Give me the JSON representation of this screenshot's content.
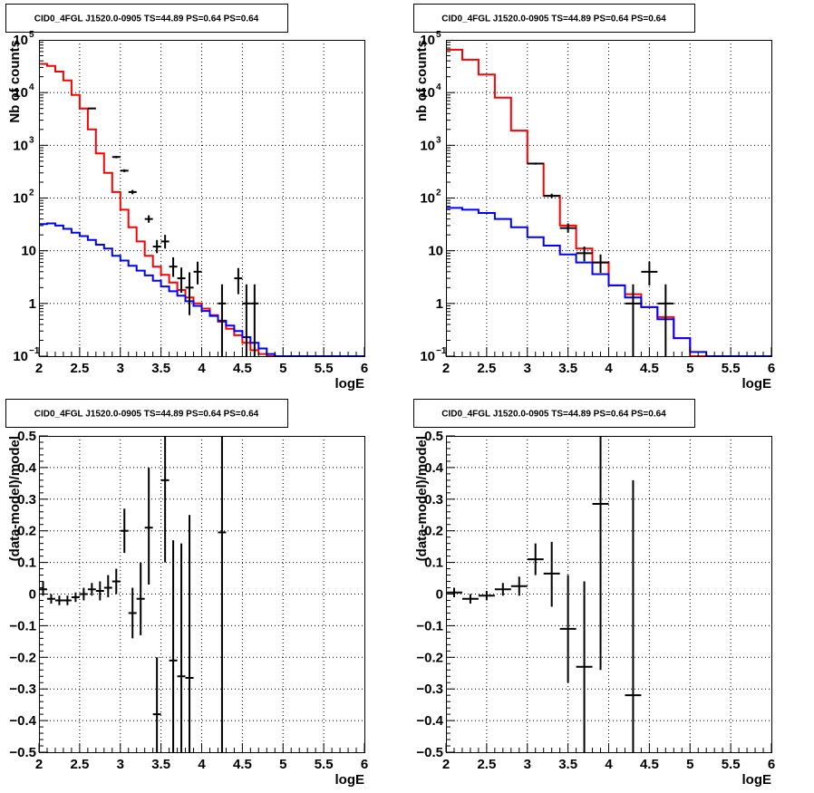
{
  "colors": {
    "data": "#000000",
    "total_model": "#ff0000",
    "background_model": "#0000ff",
    "frame": "#000000"
  },
  "chart_data": [
    {
      "type": "line",
      "title": "CID0_4FGL J1520.0-0905 TS=44.89 PS=0.64 PS=0.64",
      "xlabel": "logE",
      "ylabel": "Nb of counts",
      "xlim": [
        2,
        6
      ],
      "ylim": [
        0.1,
        100000
      ],
      "log_y": true,
      "grid": true,
      "x_ticks": [
        "2",
        "2.5",
        "3",
        "3.5",
        "4",
        "4.5",
        "5",
        "5.5",
        "6"
      ],
      "y_ticks": [
        {
          "value": 0.1,
          "mantissa": "10",
          "exp": "−1"
        },
        {
          "value": 1,
          "mantissa": "1",
          "exp": ""
        },
        {
          "value": 10,
          "mantissa": "10",
          "exp": ""
        },
        {
          "value": 100,
          "mantissa": "10",
          "exp": "2"
        },
        {
          "value": 1000,
          "mantissa": "10",
          "exp": "3"
        },
        {
          "value": 10000,
          "mantissa": "10",
          "exp": "4"
        },
        {
          "value": 100000,
          "mantissa": "10",
          "exp": "5"
        }
      ],
      "series": [
        {
          "kind": "hist",
          "color": "red",
          "bin_width": 0.1,
          "x_start": 2.0,
          "values": [
            35000,
            32000,
            25000,
            17000,
            9000,
            5000,
            2000,
            700,
            300,
            130,
            60,
            28,
            15,
            8,
            5,
            3.5,
            2.5,
            1.8,
            1.3,
            1.0,
            0.8,
            0.6,
            0.45,
            0.33,
            0.25,
            0.18,
            0.13,
            0.11,
            0.1,
            0.1,
            0.1,
            0.1,
            0.1,
            0.1,
            0.1,
            0.1,
            0.1,
            0.1,
            0.1,
            0.1
          ]
        },
        {
          "kind": "hist",
          "color": "blue",
          "bin_width": 0.1,
          "x_start": 2.0,
          "values": [
            32,
            33,
            30,
            26,
            22,
            19,
            16,
            13,
            11,
            8,
            6.5,
            5.2,
            4.2,
            3.4,
            2.7,
            2.1,
            1.7,
            1.4,
            1.1,
            0.9,
            0.72,
            0.58,
            0.47,
            0.38,
            0.3,
            0.23,
            0.18,
            0.14,
            0.11,
            0.1,
            0.1,
            0.1,
            0.1,
            0.1,
            0.1,
            0.1,
            0.1,
            0.1,
            0.1,
            0.1
          ]
        },
        {
          "kind": "points",
          "color": "black",
          "points": [
            {
              "x": 2.65,
              "y": 5000,
              "xerr": 0.05,
              "lo": 4900,
              "hi": 5100
            },
            {
              "x": 2.95,
              "y": 600,
              "xerr": 0.05,
              "lo": 570,
              "hi": 630
            },
            {
              "x": 3.05,
              "y": 330,
              "xerr": 0.05,
              "lo": 310,
              "hi": 350
            },
            {
              "x": 3.15,
              "y": 130,
              "xerr": 0.05,
              "lo": 118,
              "hi": 142
            },
            {
              "x": 3.35,
              "y": 40,
              "xerr": 0.05,
              "lo": 34,
              "hi": 47
            },
            {
              "x": 3.45,
              "y": 12,
              "xerr": 0.05,
              "lo": 9,
              "hi": 16
            },
            {
              "x": 3.55,
              "y": 15,
              "xerr": 0.05,
              "lo": 11,
              "hi": 20
            },
            {
              "x": 3.65,
              "y": 5,
              "xerr": 0.05,
              "lo": 3.2,
              "hi": 7.5
            },
            {
              "x": 3.75,
              "y": 3,
              "xerr": 0.05,
              "lo": 1.6,
              "hi": 4.8
            },
            {
              "x": 3.85,
              "y": 2,
              "xerr": 0.05,
              "lo": 0.6,
              "hi": 3.9
            },
            {
              "x": 3.95,
              "y": 4,
              "xerr": 0.05,
              "lo": 2.3,
              "hi": 6.2
            },
            {
              "x": 4.25,
              "y": 1,
              "xerr": 0.05,
              "lo": 0.05,
              "hi": 2.3
            },
            {
              "x": 4.45,
              "y": 3,
              "xerr": 0.05,
              "lo": 1.5,
              "hi": 4.7
            },
            {
              "x": 4.55,
              "y": 1,
              "xerr": 0.05,
              "lo": 0.05,
              "hi": 2.3
            },
            {
              "x": 4.65,
              "y": 1,
              "xerr": 0.05,
              "lo": 0.05,
              "hi": 2.3
            }
          ]
        }
      ]
    },
    {
      "type": "line",
      "title": "CID0_4FGL J1520.0-0905 TS=44.89 PS=0.64 PS=0.64",
      "xlabel": "logE",
      "ylabel": "nb of counts",
      "xlim": [
        2,
        6
      ],
      "ylim": [
        0.1,
        100000
      ],
      "log_y": true,
      "grid": true,
      "x_ticks": [
        "2",
        "2.5",
        "3",
        "3.5",
        "4",
        "4.5",
        "5",
        "5.5",
        "6"
      ],
      "y_ticks": [
        {
          "value": 0.1,
          "mantissa": "10",
          "exp": "−1"
        },
        {
          "value": 1,
          "mantissa": "1",
          "exp": ""
        },
        {
          "value": 10,
          "mantissa": "10",
          "exp": ""
        },
        {
          "value": 100,
          "mantissa": "10",
          "exp": "2"
        },
        {
          "value": 1000,
          "mantissa": "10",
          "exp": "3"
        },
        {
          "value": 10000,
          "mantissa": "10",
          "exp": "4"
        },
        {
          "value": 100000,
          "mantissa": "10",
          "exp": "5"
        }
      ],
      "series": [
        {
          "kind": "hist",
          "color": "red",
          "bin_width": 0.2,
          "x_start": 2.0,
          "values": [
            65000,
            42000,
            22000,
            8000,
            1900,
            450,
            110,
            30,
            11,
            6,
            2.2,
            1.5,
            0.85,
            0.55,
            0.22,
            0.1,
            0.1,
            0.1,
            0.1,
            0.1
          ]
        },
        {
          "kind": "hist",
          "color": "blue",
          "bin_width": 0.2,
          "x_start": 2.0,
          "values": [
            65,
            60,
            52,
            40,
            28,
            18,
            12.5,
            8.5,
            6,
            3.6,
            2.2,
            1.3,
            0.85,
            0.5,
            0.22,
            0.12,
            0.1,
            0.1,
            0.1,
            0.1
          ]
        },
        {
          "kind": "points",
          "color": "black",
          "points": [
            {
              "x": 3.1,
              "y": 450,
              "xerr": 0.1,
              "lo": 430,
              "hi": 470
            },
            {
              "x": 3.3,
              "y": 110,
              "xerr": 0.1,
              "lo": 100,
              "hi": 121
            },
            {
              "x": 3.5,
              "y": 27,
              "xerr": 0.1,
              "lo": 22,
              "hi": 33
            },
            {
              "x": 3.7,
              "y": 9,
              "xerr": 0.1,
              "lo": 6.3,
              "hi": 12
            },
            {
              "x": 3.9,
              "y": 6,
              "xerr": 0.1,
              "lo": 3.8,
              "hi": 8.5
            },
            {
              "x": 4.3,
              "y": 1,
              "xerr": 0.1,
              "lo": 0.05,
              "hi": 2.3
            },
            {
              "x": 4.5,
              "y": 4,
              "xerr": 0.1,
              "lo": 2.2,
              "hi": 6.2
            },
            {
              "x": 4.7,
              "y": 1,
              "xerr": 0.1,
              "lo": 0.05,
              "hi": 2.3
            }
          ]
        }
      ]
    },
    {
      "type": "scatter",
      "title": "CID0_4FGL J1520.0-0905 TS=44.89 PS=0.64 PS=0.64",
      "xlabel": "logE",
      "ylabel": "(data-model)/model",
      "xlim": [
        2,
        6
      ],
      "ylim": [
        -0.5,
        0.5
      ],
      "log_y": false,
      "grid": true,
      "x_ticks": [
        "2",
        "2.5",
        "3",
        "3.5",
        "4",
        "4.5",
        "5",
        "5.5",
        "6"
      ],
      "y_ticks": [
        {
          "value": -0.5,
          "label": "−0.5"
        },
        {
          "value": -0.4,
          "label": "−0.4"
        },
        {
          "value": -0.3,
          "label": "−0.3"
        },
        {
          "value": -0.2,
          "label": "−0.2"
        },
        {
          "value": -0.1,
          "label": "−0.1"
        },
        {
          "value": 0,
          "label": "0"
        },
        {
          "value": 0.1,
          "label": "0.1"
        },
        {
          "value": 0.2,
          "label": "0.2"
        },
        {
          "value": 0.3,
          "label": "0.3"
        },
        {
          "value": 0.4,
          "label": "0.4"
        },
        {
          "value": 0.5,
          "label": "0.5"
        }
      ],
      "series": [
        {
          "kind": "points",
          "color": "black",
          "points": [
            {
              "x": 2.05,
              "y": 0.015,
              "xerr": 0.05,
              "lo": -0.005,
              "hi": 0.04
            },
            {
              "x": 2.15,
              "y": -0.015,
              "xerr": 0.05,
              "lo": -0.03,
              "hi": 0.0
            },
            {
              "x": 2.25,
              "y": -0.02,
              "xerr": 0.05,
              "lo": -0.035,
              "hi": -0.005
            },
            {
              "x": 2.35,
              "y": -0.02,
              "xerr": 0.05,
              "lo": -0.035,
              "hi": -0.005
            },
            {
              "x": 2.45,
              "y": -0.01,
              "xerr": 0.05,
              "lo": -0.025,
              "hi": 0.005
            },
            {
              "x": 2.55,
              "y": 0.0,
              "xerr": 0.05,
              "lo": -0.02,
              "hi": 0.02
            },
            {
              "x": 2.65,
              "y": 0.015,
              "xerr": 0.05,
              "lo": -0.005,
              "hi": 0.035
            },
            {
              "x": 2.75,
              "y": 0.01,
              "xerr": 0.05,
              "lo": -0.02,
              "hi": 0.04
            },
            {
              "x": 2.85,
              "y": 0.02,
              "xerr": 0.05,
              "lo": -0.01,
              "hi": 0.06
            },
            {
              "x": 2.95,
              "y": 0.04,
              "xerr": 0.05,
              "lo": 0.0,
              "hi": 0.08
            },
            {
              "x": 3.05,
              "y": 0.2,
              "xerr": 0.05,
              "lo": 0.13,
              "hi": 0.27
            },
            {
              "x": 3.15,
              "y": -0.06,
              "xerr": 0.05,
              "lo": -0.14,
              "hi": 0.02
            },
            {
              "x": 3.25,
              "y": -0.015,
              "xerr": 0.05,
              "lo": -0.13,
              "hi": 0.1
            },
            {
              "x": 3.35,
              "y": 0.21,
              "xerr": 0.05,
              "lo": 0.03,
              "hi": 0.4
            },
            {
              "x": 3.45,
              "y": -0.38,
              "xerr": 0.05,
              "lo": -0.5,
              "hi": -0.2
            },
            {
              "x": 3.55,
              "y": 0.36,
              "xerr": 0.05,
              "lo": 0.1,
              "hi": 0.5
            },
            {
              "x": 3.65,
              "y": -0.21,
              "xerr": 0.05,
              "lo": -0.5,
              "hi": 0.17
            },
            {
              "x": 3.75,
              "y": -0.26,
              "xerr": 0.05,
              "lo": -0.5,
              "hi": 0.16
            },
            {
              "x": 3.85,
              "y": -0.265,
              "xerr": 0.05,
              "lo": -0.5,
              "hi": 0.25
            },
            {
              "x": 4.25,
              "y": 0.195,
              "xerr": 0.05,
              "lo": -0.5,
              "hi": 0.5
            }
          ]
        }
      ]
    },
    {
      "type": "scatter",
      "title": "CID0_4FGL J1520.0-0905 TS=44.89 PS=0.64 PS=0.64",
      "xlabel": "logE",
      "ylabel": "(data-model)/model",
      "xlim": [
        2,
        6
      ],
      "ylim": [
        -0.5,
        0.5
      ],
      "log_y": false,
      "grid": true,
      "x_ticks": [
        "2",
        "2.5",
        "3",
        "3.5",
        "4",
        "4.5",
        "5",
        "5.5",
        "6"
      ],
      "y_ticks": [
        {
          "value": -0.5,
          "label": "−0.5"
        },
        {
          "value": -0.4,
          "label": "−0.4"
        },
        {
          "value": -0.3,
          "label": "−0.3"
        },
        {
          "value": -0.2,
          "label": "−0.2"
        },
        {
          "value": -0.1,
          "label": "−0.1"
        },
        {
          "value": 0,
          "label": "0"
        },
        {
          "value": 0.1,
          "label": "0.1"
        },
        {
          "value": 0.2,
          "label": "0.2"
        },
        {
          "value": 0.3,
          "label": "0.3"
        },
        {
          "value": 0.4,
          "label": "0.4"
        },
        {
          "value": 0.5,
          "label": "0.5"
        }
      ],
      "series": [
        {
          "kind": "points",
          "color": "black",
          "points": [
            {
              "x": 2.1,
              "y": 0.005,
              "xerr": 0.1,
              "lo": -0.01,
              "hi": 0.02
            },
            {
              "x": 2.3,
              "y": -0.015,
              "xerr": 0.1,
              "lo": -0.03,
              "hi": 0.0
            },
            {
              "x": 2.5,
              "y": -0.005,
              "xerr": 0.1,
              "lo": -0.02,
              "hi": 0.01
            },
            {
              "x": 2.7,
              "y": 0.015,
              "xerr": 0.1,
              "lo": -0.005,
              "hi": 0.035
            },
            {
              "x": 2.9,
              "y": 0.025,
              "xerr": 0.1,
              "lo": -0.005,
              "hi": 0.055
            },
            {
              "x": 3.1,
              "y": 0.11,
              "xerr": 0.1,
              "lo": 0.06,
              "hi": 0.16
            },
            {
              "x": 3.3,
              "y": 0.065,
              "xerr": 0.1,
              "lo": -0.04,
              "hi": 0.165
            },
            {
              "x": 3.5,
              "y": -0.11,
              "xerr": 0.1,
              "lo": -0.28,
              "hi": 0.06
            },
            {
              "x": 3.7,
              "y": -0.23,
              "xerr": 0.1,
              "lo": -0.5,
              "hi": 0.04
            },
            {
              "x": 3.9,
              "y": 0.285,
              "xerr": 0.1,
              "lo": -0.24,
              "hi": 0.5
            },
            {
              "x": 4.3,
              "y": -0.32,
              "xerr": 0.1,
              "lo": -0.5,
              "hi": 0.36
            }
          ]
        }
      ]
    }
  ]
}
